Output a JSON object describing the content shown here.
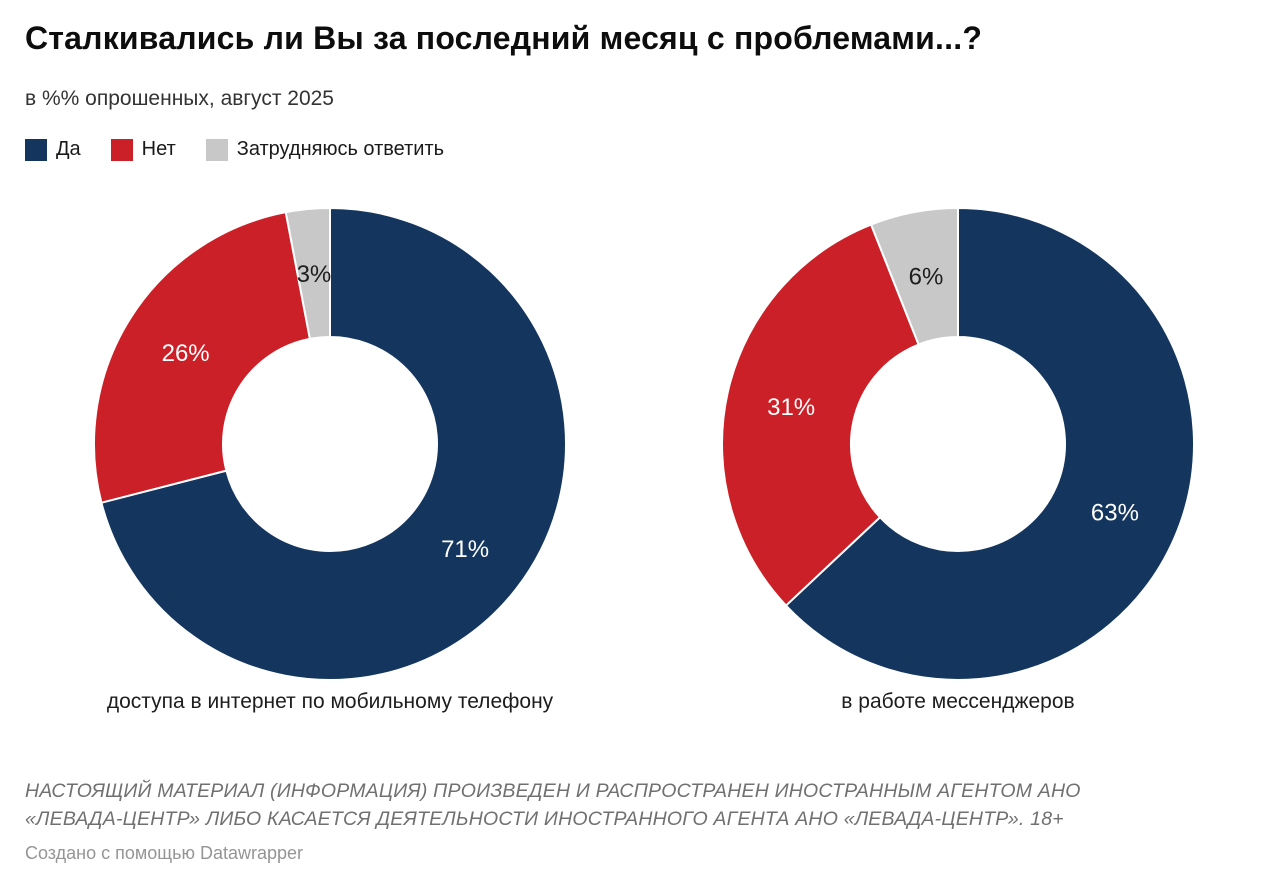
{
  "title": "Сталкивались ли Вы за последний месяц с проблемами...?",
  "subtitle": "в %% опрошенных, август 2025",
  "chart_data": {
    "type": "pie",
    "variant": "donut",
    "title": "Сталкивались ли Вы за последний месяц с проблемами...?",
    "subtitle": "в %% опрошенных, август 2025",
    "legend_position": "top-left",
    "categories": [
      "Да",
      "Нет",
      "Затрудняюсь ответить"
    ],
    "colors": [
      "#14365e",
      "#cb2027",
      "#c8c8c8"
    ],
    "slice_label_colors": [
      "#ffffff",
      "#ffffff",
      "#1d1d1d"
    ],
    "value_suffix": "%",
    "charts": [
      {
        "caption": "доступа в интернет по мобильному телефону",
        "values": [
          71,
          26,
          3
        ]
      },
      {
        "caption": "в работе мессенджеров",
        "values": [
          63,
          31,
          6
        ]
      }
    ]
  },
  "disclaimer": {
    "line1": "НАСТОЯЩИЙ МАТЕРИАЛ (ИНФОРМАЦИЯ) ПРОИЗВЕДЕН И РАСПРОСТРАНЕН ИНОСТРАННЫМ АГЕНТОМ АНО",
    "line2": "«ЛЕВАДА-ЦЕНТР» ЛИБО КАСАЕТСЯ ДЕЯТЕЛЬНОСТИ ИНОСТРАННОГО АГЕНТА АНО «ЛЕВАДА-ЦЕНТР». 18+"
  },
  "credit": "Создано с помощью Datawrapper"
}
